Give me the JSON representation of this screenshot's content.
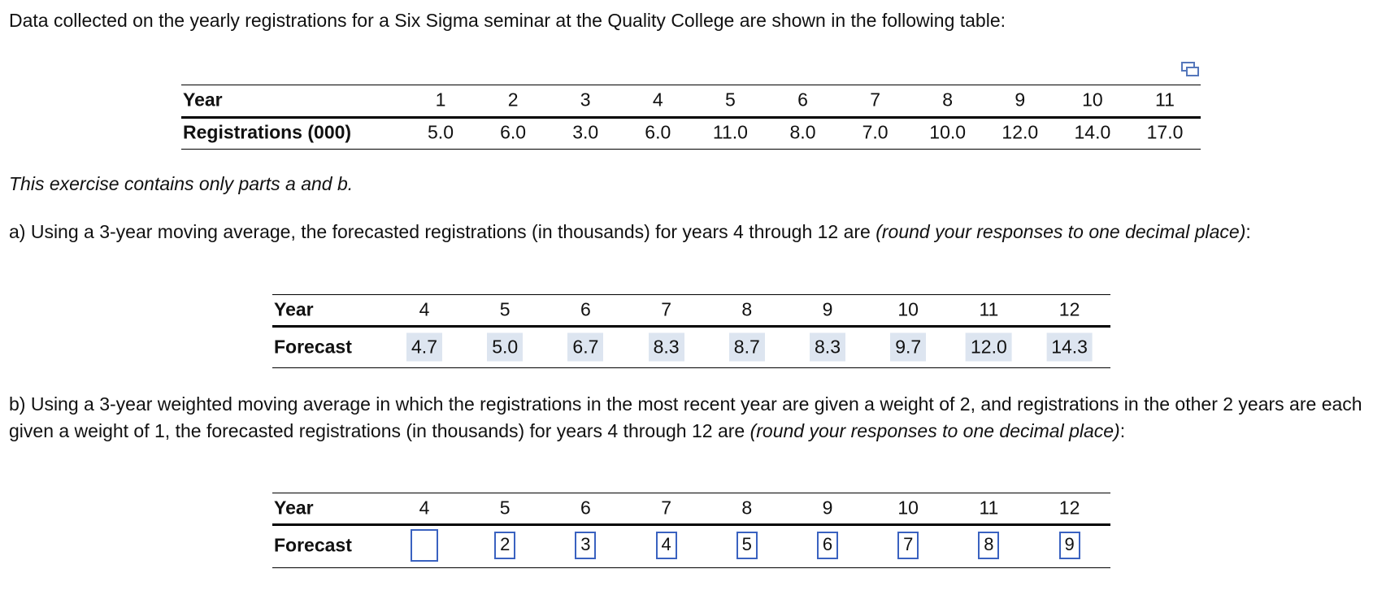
{
  "intro": "Data collected on the yearly registrations for a Six Sigma seminar at the Quality College are shown in the following table:",
  "data_table": {
    "row_labels": [
      "Year",
      "Registrations (000)"
    ],
    "years": [
      "1",
      "2",
      "3",
      "4",
      "5",
      "6",
      "7",
      "8",
      "9",
      "10",
      "11"
    ],
    "registrations": [
      "5.0",
      "6.0",
      "3.0",
      "6.0",
      "11.0",
      "8.0",
      "7.0",
      "10.0",
      "12.0",
      "14.0",
      "17.0"
    ]
  },
  "note": "This exercise contains only parts a and b.",
  "part_a": {
    "text": "a) Using a 3-year moving average, the forecasted registrations (in thousands) for years 4 through 12 are ",
    "hint": "(round your responses to one decimal place)",
    "end": ":",
    "table": {
      "row_labels": [
        "Year",
        "Forecast"
      ],
      "years": [
        "4",
        "5",
        "6",
        "7",
        "8",
        "9",
        "10",
        "11",
        "12"
      ],
      "forecasts": [
        "4.7",
        "5.0",
        "6.7",
        "8.3",
        "8.7",
        "8.3",
        "9.7",
        "12.0",
        "14.3"
      ]
    }
  },
  "part_b": {
    "text": "b) Using a 3-year weighted moving average in which the registrations in the most recent year are given a weight of 2, and registrations in the other 2 years are each given a weight of 1, the forecasted registrations (in thousands) for years 4 through 12 are ",
    "hint": "(round your responses to one decimal place)",
    "end": ":",
    "table": {
      "row_labels": [
        "Year",
        "Forecast"
      ],
      "years": [
        "4",
        "5",
        "6",
        "7",
        "8",
        "9",
        "10",
        "11",
        "12"
      ],
      "box_labels": [
        "2",
        "3",
        "4",
        "5",
        "6",
        "7",
        "8",
        "9"
      ]
    }
  }
}
